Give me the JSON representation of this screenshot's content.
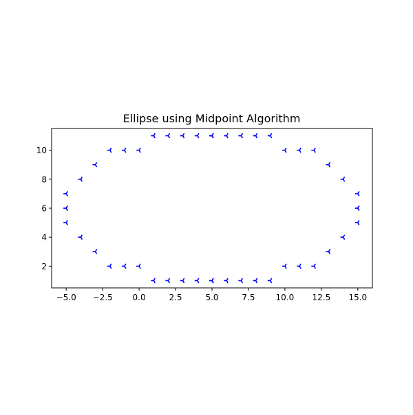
{
  "chart_data": {
    "type": "scatter",
    "title": "Ellipse using Midpoint Algorithm",
    "xlabel": "",
    "ylabel": "",
    "xlim": [
      -6,
      16
    ],
    "ylim": [
      0.5,
      11.5
    ],
    "x_ticks": [
      -5.0,
      -2.5,
      0.0,
      2.5,
      5.0,
      7.5,
      10.0,
      12.5,
      15.0
    ],
    "x_tick_labels": [
      "−5.0",
      "−2.5",
      "0.0",
      "2.5",
      "5.0",
      "7.5",
      "10.0",
      "12.5",
      "15.0"
    ],
    "y_ticks": [
      2,
      4,
      6,
      8,
      10
    ],
    "y_tick_labels": [
      "2",
      "4",
      "6",
      "8",
      "10"
    ],
    "grid": false,
    "marker": "tri-left",
    "marker_color": "#0000ff",
    "points": [
      [
        1,
        11
      ],
      [
        2,
        11
      ],
      [
        3,
        11
      ],
      [
        4,
        11
      ],
      [
        5,
        11
      ],
      [
        6,
        11
      ],
      [
        7,
        11
      ],
      [
        8,
        11
      ],
      [
        9,
        11
      ],
      [
        1,
        1
      ],
      [
        2,
        1
      ],
      [
        3,
        1
      ],
      [
        4,
        1
      ],
      [
        5,
        1
      ],
      [
        6,
        1
      ],
      [
        7,
        1
      ],
      [
        8,
        1
      ],
      [
        9,
        1
      ],
      [
        -2,
        10
      ],
      [
        -1,
        10
      ],
      [
        0,
        10
      ],
      [
        10,
        10
      ],
      [
        11,
        10
      ],
      [
        12,
        10
      ],
      [
        -2,
        2
      ],
      [
        -1,
        2
      ],
      [
        0,
        2
      ],
      [
        10,
        2
      ],
      [
        11,
        2
      ],
      [
        12,
        2
      ],
      [
        -3,
        9
      ],
      [
        13,
        9
      ],
      [
        -3,
        3
      ],
      [
        13,
        3
      ],
      [
        -4,
        8
      ],
      [
        14,
        8
      ],
      [
        -4,
        4
      ],
      [
        14,
        4
      ],
      [
        -5,
        7
      ],
      [
        -5,
        6
      ],
      [
        -5,
        5
      ],
      [
        15,
        7
      ],
      [
        15,
        6
      ],
      [
        15,
        5
      ],
      [
        5,
        11
      ],
      [
        5,
        1
      ],
      [
        -5,
        6
      ],
      [
        15,
        6
      ]
    ]
  }
}
